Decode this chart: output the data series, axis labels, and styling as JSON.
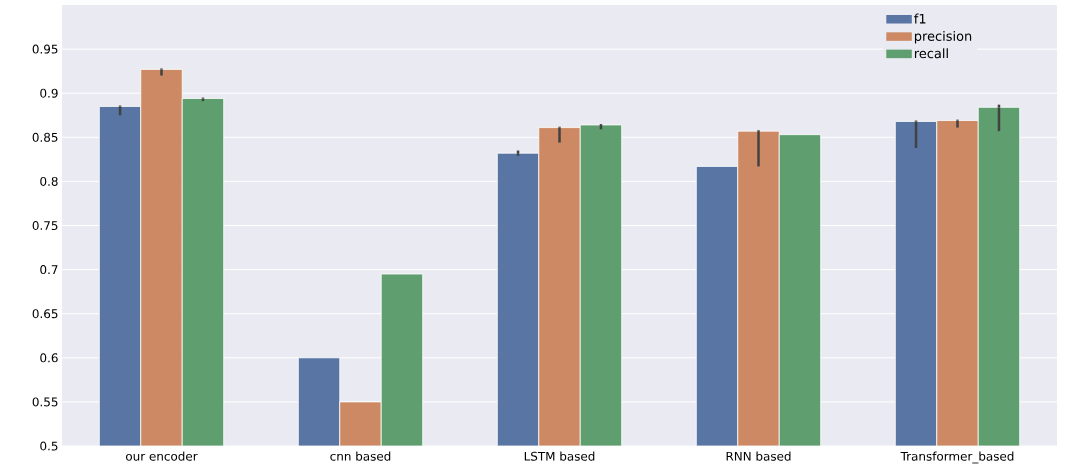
{
  "chart_data": {
    "type": "bar",
    "categories": [
      "our encoder",
      "cnn based",
      "LSTM based",
      "RNN based",
      "Transformer_based"
    ],
    "series": [
      {
        "name": "f1",
        "color": "#5875a4",
        "values": [
          0.885,
          0.6,
          0.832,
          0.817,
          0.868
        ],
        "errors": [
          [
            0.875,
            0.886
          ],
          null,
          0.003,
          null,
          [
            0.838,
            0.869
          ]
        ]
      },
      {
        "name": "precision",
        "color": "#cc8963",
        "values": [
          0.927,
          0.55,
          0.861,
          0.857,
          0.869
        ],
        "errors": [
          [
            0.92,
            0.928
          ],
          null,
          [
            0.844,
            0.862
          ],
          [
            0.817,
            0.858
          ],
          [
            0.861,
            0.87
          ]
        ]
      },
      {
        "name": "recall",
        "color": "#5f9e6e",
        "values": [
          0.894,
          0.695,
          0.864,
          0.853,
          0.884
        ],
        "errors": [
          [
            0.891,
            0.895
          ],
          null,
          [
            0.859,
            0.865
          ],
          null,
          [
            0.857,
            0.887
          ]
        ]
      }
    ],
    "ylim": [
      0.5,
      1.0
    ],
    "yticks": [
      0.5,
      0.55,
      0.6,
      0.65,
      0.7,
      0.75,
      0.8,
      0.85,
      0.9,
      0.95
    ],
    "grid": "y",
    "legend": "top right"
  }
}
